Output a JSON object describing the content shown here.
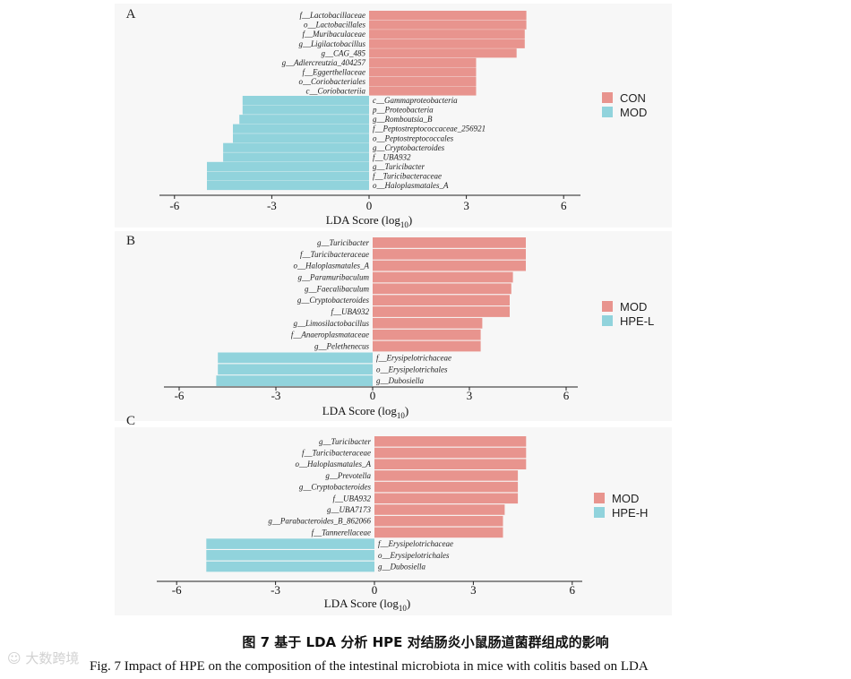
{
  "chart_data": [
    {
      "type": "bar",
      "orientation": "horizontal",
      "panel": "A",
      "xlabel": "LDA Score (log10)",
      "xlabel_main": "LDA Score (log",
      "xlabel_sub": "10",
      "xlabel_end": ")",
      "xlim": [
        -6.4,
        6.2
      ],
      "xticks": [
        -6,
        -3,
        0,
        3,
        6
      ],
      "legend": [
        {
          "label": "CON",
          "color": "#e8948e"
        },
        {
          "label": "MOD",
          "color": "#91d3dc"
        }
      ],
      "bars": [
        {
          "label": "f__Lactobacillaceae",
          "value": 4.85,
          "group": "CON"
        },
        {
          "label": "o__Lactobacillales",
          "value": 4.85,
          "group": "CON"
        },
        {
          "label": "f__Muribaculaceae",
          "value": 4.8,
          "group": "CON"
        },
        {
          "label": "g__Ligilactobacillus",
          "value": 4.8,
          "group": "CON"
        },
        {
          "label": "g__CAG_485",
          "value": 4.55,
          "group": "CON"
        },
        {
          "label": "g__Adlercreutzia_404257",
          "value": 3.3,
          "group": "CON"
        },
        {
          "label": "f__Eggerthellaceae",
          "value": 3.3,
          "group": "CON"
        },
        {
          "label": "o__Coriobacteriales",
          "value": 3.3,
          "group": "CON"
        },
        {
          "label": "c__Coriobacteriia",
          "value": 3.3,
          "group": "CON"
        },
        {
          "label": "c__Gammaproteobacteria",
          "value": -3.9,
          "group": "MOD"
        },
        {
          "label": "p__Proteobacteria",
          "value": -3.9,
          "group": "MOD"
        },
        {
          "label": "g__Romboutsia_B",
          "value": -4.0,
          "group": "MOD"
        },
        {
          "label": "f__Peptostreptococcaceae_256921",
          "value": -4.2,
          "group": "MOD"
        },
        {
          "label": "o__Peptostreptococcales",
          "value": -4.2,
          "group": "MOD"
        },
        {
          "label": "g__Cryptobacteroides",
          "value": -4.5,
          "group": "MOD"
        },
        {
          "label": "f__UBA932",
          "value": -4.5,
          "group": "MOD"
        },
        {
          "label": "g__Turicibacter",
          "value": -5.0,
          "group": "MOD"
        },
        {
          "label": "f__Turicibacteraceae",
          "value": -5.0,
          "group": "MOD"
        },
        {
          "label": "o__Haloplasmatales_A",
          "value": -5.0,
          "group": "MOD"
        }
      ]
    },
    {
      "type": "bar",
      "orientation": "horizontal",
      "panel": "B",
      "xlabel": "LDA Score (log10)",
      "xlabel_main": "LDA Score (log",
      "xlabel_sub": "10",
      "xlabel_end": ")",
      "xlim": [
        -6.3,
        6.3
      ],
      "xticks": [
        -6,
        -3,
        0,
        3,
        6
      ],
      "legend": [
        {
          "label": "MOD",
          "color": "#e8948e"
        },
        {
          "label": "HPE-L",
          "color": "#91d3dc"
        }
      ],
      "bars": [
        {
          "label": "g__Turicibacter",
          "value": 4.75,
          "group": "MOD"
        },
        {
          "label": "f__Turicibacteraceae",
          "value": 4.75,
          "group": "MOD"
        },
        {
          "label": "o__Haloplasmatales_A",
          "value": 4.75,
          "group": "MOD"
        },
        {
          "label": "g__Paramuribaculum",
          "value": 4.35,
          "group": "MOD"
        },
        {
          "label": "g__Faecalibaculum",
          "value": 4.3,
          "group": "MOD"
        },
        {
          "label": "g__Cryptobacteroides",
          "value": 4.25,
          "group": "MOD"
        },
        {
          "label": "f__UBA932",
          "value": 4.25,
          "group": "MOD"
        },
        {
          "label": "g__Limosilactobacillus",
          "value": 3.4,
          "group": "MOD"
        },
        {
          "label": "f__Anaeroplasmataceae",
          "value": 3.35,
          "group": "MOD"
        },
        {
          "label": "g__Pelethenecus",
          "value": 3.35,
          "group": "MOD"
        },
        {
          "label": "f__Erysipelotrichaceae",
          "value": -4.8,
          "group": "HPE-L"
        },
        {
          "label": "o__Erysipelotrichales",
          "value": -4.8,
          "group": "HPE-L"
        },
        {
          "label": "g__Dubosiella",
          "value": -4.85,
          "group": "HPE-L"
        }
      ]
    },
    {
      "type": "bar",
      "orientation": "horizontal",
      "panel": "C",
      "xlabel": "LDA Score (log10)",
      "xlabel_main": "LDA Score (log",
      "xlabel_sub": "10",
      "xlabel_end": ")",
      "xlim": [
        -6.4,
        6.3
      ],
      "xticks": [
        -6,
        -3,
        0,
        3,
        6
      ],
      "legend": [
        {
          "label": "MOD",
          "color": "#e8948e"
        },
        {
          "label": "HPE-H",
          "color": "#91d3dc"
        }
      ],
      "bars": [
        {
          "label": "g__Turicibacter",
          "value": 4.6,
          "group": "MOD"
        },
        {
          "label": "f__Turicibacteraceae",
          "value": 4.6,
          "group": "MOD"
        },
        {
          "label": "o__Haloplasmatales_A",
          "value": 4.6,
          "group": "MOD"
        },
        {
          "label": "g__Prevotella",
          "value": 4.35,
          "group": "MOD"
        },
        {
          "label": "g__Cryptobacteroides",
          "value": 4.35,
          "group": "MOD"
        },
        {
          "label": "f__UBA932",
          "value": 4.35,
          "group": "MOD"
        },
        {
          "label": "g__UBA7173",
          "value": 3.95,
          "group": "MOD"
        },
        {
          "label": "g__Parabacteroides_B_862066",
          "value": 3.9,
          "group": "MOD"
        },
        {
          "label": "f__Tannerellaceae",
          "value": 3.9,
          "group": "MOD"
        },
        {
          "label": "f__Erysipelotrichaceae",
          "value": -5.1,
          "group": "HPE-H"
        },
        {
          "label": "o__Erysipelotrichales",
          "value": -5.1,
          "group": "HPE-H"
        },
        {
          "label": "g__Dubosiella",
          "value": -5.1,
          "group": "HPE-H"
        }
      ]
    }
  ],
  "caption": {
    "chinese": "图 7 基于 LDA 分析 HPE 对结肠炎小鼠肠道菌群组成的影响",
    "english": "Fig. 7 Impact of HPE on the composition of the intestinal microbiota in mice with colitis based on LDA"
  },
  "watermark": "☺ 大数跨境"
}
